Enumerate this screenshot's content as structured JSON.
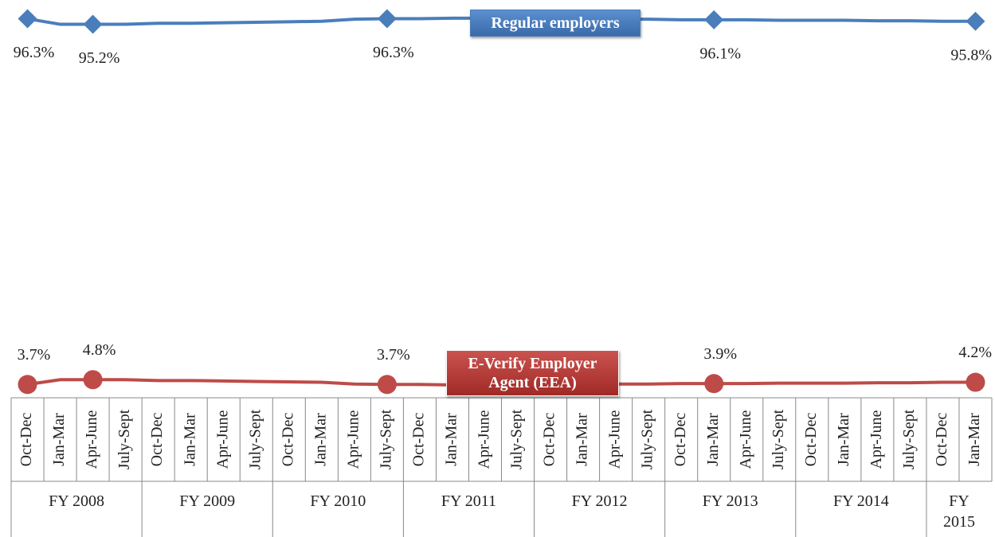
{
  "chart_data": {
    "type": "line",
    "categories": [
      "Oct-Dec",
      "Jan-Mar",
      "Apr-June",
      "July-Sept",
      "Oct-Dec",
      "Jan-Mar",
      "Apr-June",
      "July-Sept",
      "Oct-Dec",
      "Jan-Mar",
      "Apr-June",
      "July-Sept",
      "Oct-Dec",
      "Jan-Mar",
      "Apr-June",
      "July-Sept",
      "Oct-Dec",
      "Jan-Mar",
      "Apr-June",
      "July-Sept",
      "Oct-Dec",
      "Jan-Mar",
      "Apr-June",
      "July-Sept",
      "Oct-Dec",
      "Jan-Mar",
      "Apr-June",
      "July-Sept",
      "Oct-Dec",
      "Jan-Mar"
    ],
    "groups": [
      "FY 2008",
      "FY 2009",
      "FY 2010",
      "FY 2011",
      "FY 2012",
      "FY 2013",
      "FY 2014",
      "FY 2015"
    ],
    "series": [
      {
        "name": "Regular employers",
        "color": "#4a7ebb",
        "marker": "diamond",
        "values": [
          96.3,
          95.2,
          95.2,
          95.2,
          95.4,
          95.4,
          95.5,
          95.6,
          95.7,
          95.8,
          96.2,
          96.3,
          96.3,
          96.4,
          96.4,
          96.4,
          96.3,
          96.3,
          96.2,
          96.2,
          96.1,
          96.1,
          96.1,
          96.0,
          96.0,
          96.0,
          95.9,
          95.9,
          95.8,
          95.8
        ],
        "value_labels": [
          "96.3%",
          null,
          "95.2%",
          null,
          null,
          null,
          null,
          null,
          null,
          null,
          null,
          "96.3%",
          null,
          null,
          null,
          null,
          null,
          null,
          null,
          null,
          null,
          "96.1%",
          null,
          null,
          null,
          null,
          null,
          null,
          null,
          "95.8%"
        ]
      },
      {
        "name": "E-Verify Employer Agent (EEA)",
        "color": "#be4b48",
        "marker": "circle",
        "axis": "y2",
        "values": [
          3.7,
          4.8,
          4.8,
          4.8,
          4.6,
          4.6,
          4.5,
          4.4,
          4.3,
          4.2,
          3.8,
          3.7,
          3.7,
          3.6,
          3.6,
          3.6,
          3.7,
          3.7,
          3.8,
          3.8,
          3.9,
          3.9,
          3.9,
          4.0,
          4.0,
          4.0,
          4.1,
          4.1,
          4.2,
          4.2
        ],
        "value_labels": [
          "3.7%",
          null,
          "4.8%",
          null,
          null,
          null,
          null,
          null,
          null,
          null,
          null,
          "3.7%",
          null,
          null,
          null,
          null,
          null,
          null,
          null,
          null,
          null,
          "3.9%",
          null,
          null,
          null,
          null,
          null,
          null,
          null,
          "4.2%"
        ]
      }
    ],
    "ylim": [
      20,
      100
    ],
    "y2lim": [
      -1,
      92
    ]
  }
}
